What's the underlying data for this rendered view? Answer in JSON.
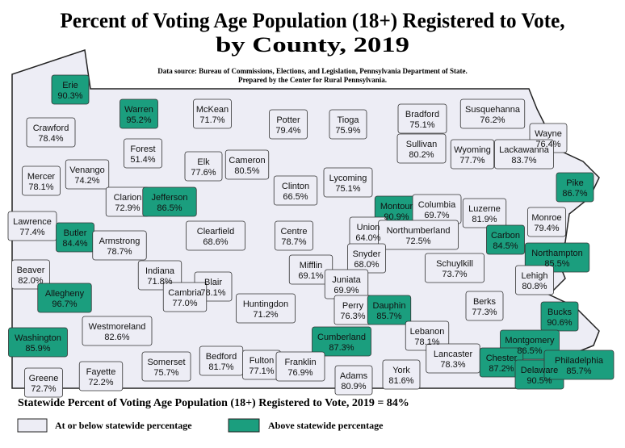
{
  "header": {
    "title": [
      "Percent of Voting Age Population (18+) Registered to Vote,",
      "by County, 2019"
    ],
    "source": [
      "Data source: Bureau of Commissions, Elections, and Legislation, Pennsylvania Department of State.",
      "Prepared by the Center for Rural Pennsylvania."
    ]
  },
  "counties": [
    {
      "name": "Erie",
      "value": "90.3%",
      "fill": "#1b9e7e"
    },
    {
      "name": "Warren",
      "value": "95.2%",
      "fill": "#1b9e7e"
    },
    {
      "name": "McKean",
      "value": "71.7%",
      "fill": "#ededf5"
    },
    {
      "name": "Potter",
      "value": "79.4%",
      "fill": "#ededf5"
    },
    {
      "name": "Tioga",
      "value": "75.9%",
      "fill": "#ededf5"
    },
    {
      "name": "Bradford",
      "value": "75.1%",
      "fill": "#ededf5"
    },
    {
      "name": "Susquehanna",
      "value": "76.2%",
      "fill": "#ededf5"
    },
    {
      "name": "Wayne",
      "value": "76.4%",
      "fill": "#ededf5"
    },
    {
      "name": "Crawford",
      "value": "78.4%",
      "fill": "#ededf5"
    },
    {
      "name": "Forest",
      "value": "51.4%",
      "fill": "#ededf5"
    },
    {
      "name": "Venango",
      "value": "74.2%",
      "fill": "#ededf5"
    },
    {
      "name": "Elk",
      "value": "77.6%",
      "fill": "#ededf5"
    },
    {
      "name": "Cameron",
      "value": "80.5%",
      "fill": "#ededf5"
    },
    {
      "name": "Sullivan",
      "value": "80.2%",
      "fill": "#ededf5"
    },
    {
      "name": "Wyoming",
      "value": "77.7%",
      "fill": "#ededf5"
    },
    {
      "name": "Lackawanna",
      "value": "83.7%",
      "fill": "#ededf5"
    },
    {
      "name": "Pike",
      "value": "86.7%",
      "fill": "#1b9e7e"
    },
    {
      "name": "Mercer",
      "value": "78.1%",
      "fill": "#ededf5"
    },
    {
      "name": "Clarion",
      "value": "72.9%",
      "fill": "#ededf5"
    },
    {
      "name": "Jefferson",
      "value": "86.5%",
      "fill": "#1b9e7e"
    },
    {
      "name": "Clinton",
      "value": "66.5%",
      "fill": "#ededf5"
    },
    {
      "name": "Lycoming",
      "value": "75.1%",
      "fill": "#ededf5"
    },
    {
      "name": "Luzerne",
      "value": "81.9%",
      "fill": "#ededf5"
    },
    {
      "name": "Montour",
      "value": "90.9%",
      "fill": "#1b9e7e"
    },
    {
      "name": "Columbia",
      "value": "69.7%",
      "fill": "#ededf5"
    },
    {
      "name": "Monroe",
      "value": "79.4%",
      "fill": "#ededf5"
    },
    {
      "name": "Lawrence",
      "value": "77.4%",
      "fill": "#ededf5"
    },
    {
      "name": "Butler",
      "value": "84.4%",
      "fill": "#1b9e7e"
    },
    {
      "name": "Clearfield",
      "value": "68.6%",
      "fill": "#ededf5"
    },
    {
      "name": "Centre",
      "value": "78.7%",
      "fill": "#ededf5"
    },
    {
      "name": "Union",
      "value": "64.0%",
      "fill": "#ededf5"
    },
    {
      "name": "Northumberland",
      "value": "72.5%",
      "fill": "#ededf5"
    },
    {
      "name": "Carbon",
      "value": "84.5%",
      "fill": "#1b9e7e"
    },
    {
      "name": "Armstrong",
      "value": "78.7%",
      "fill": "#ededf5"
    },
    {
      "name": "Snyder",
      "value": "68.0%",
      "fill": "#ededf5"
    },
    {
      "name": "Northampton",
      "value": "85.5%",
      "fill": "#1b9e7e"
    },
    {
      "name": "Beaver",
      "value": "82.0%",
      "fill": "#ededf5"
    },
    {
      "name": "Indiana",
      "value": "71.8%",
      "fill": "#ededf5"
    },
    {
      "name": "Schuylkill",
      "value": "73.7%",
      "fill": "#ededf5"
    },
    {
      "name": "Lehigh",
      "value": "80.8%",
      "fill": "#ededf5"
    },
    {
      "name": "Allegheny",
      "value": "96.7%",
      "fill": "#1b9e7e"
    },
    {
      "name": "Blair",
      "value": "78.1%",
      "fill": "#ededf5"
    },
    {
      "name": "Mifflin",
      "value": "69.1%",
      "fill": "#ededf5"
    },
    {
      "name": "Juniata",
      "value": "69.9%",
      "fill": "#ededf5"
    },
    {
      "name": "Cambria",
      "value": "77.0%",
      "fill": "#ededf5"
    },
    {
      "name": "Huntingdon",
      "value": "71.2%",
      "fill": "#ededf5"
    },
    {
      "name": "Perry",
      "value": "76.3%",
      "fill": "#ededf5"
    },
    {
      "name": "Dauphin",
      "value": "85.7%",
      "fill": "#1b9e7e"
    },
    {
      "name": "Berks",
      "value": "77.3%",
      "fill": "#ededf5"
    },
    {
      "name": "Lebanon",
      "value": "78.1%",
      "fill": "#ededf5"
    },
    {
      "name": "Bucks",
      "value": "90.6%",
      "fill": "#1b9e7e"
    },
    {
      "name": "Westmoreland",
      "value": "82.6%",
      "fill": "#ededf5"
    },
    {
      "name": "Washington",
      "value": "85.9%",
      "fill": "#1b9e7e"
    },
    {
      "name": "Montgomery",
      "value": "86.5%",
      "fill": "#1b9e7e"
    },
    {
      "name": "Cumberland",
      "value": "87.3%",
      "fill": "#1b9e7e"
    },
    {
      "name": "Somerset",
      "value": "75.7%",
      "fill": "#ededf5"
    },
    {
      "name": "Bedford",
      "value": "81.7%",
      "fill": "#ededf5"
    },
    {
      "name": "Fulton",
      "value": "77.1%",
      "fill": "#ededf5"
    },
    {
      "name": "Franklin",
      "value": "76.9%",
      "fill": "#ededf5"
    },
    {
      "name": "Adams",
      "value": "80.9%",
      "fill": "#ededf5"
    },
    {
      "name": "York",
      "value": "81.6%",
      "fill": "#ededf5"
    },
    {
      "name": "Lancaster",
      "value": "78.3%",
      "fill": "#ededf5"
    },
    {
      "name": "Chester",
      "value": "87.2%",
      "fill": "#1b9e7e"
    },
    {
      "name": "Delaware",
      "value": "90.5%",
      "fill": "#1b9e7e"
    },
    {
      "name": "Philadelphia",
      "value": "85.7%",
      "fill": "#1b9e7e"
    },
    {
      "name": "Greene",
      "value": "72.7%",
      "fill": "#ededf5"
    },
    {
      "name": "Fayette",
      "value": "72.2%",
      "fill": "#ededf5"
    }
  ],
  "footer": {
    "statewide": "Statewide Percent of Voting Age Population (18+) Registered to Vote, 2019 = 84%",
    "legend": [
      {
        "label": "At or below statewide percentage",
        "color": "#ededf5"
      },
      {
        "label": "Above statewide percentage",
        "color": "#1b9e7e"
      }
    ]
  }
}
